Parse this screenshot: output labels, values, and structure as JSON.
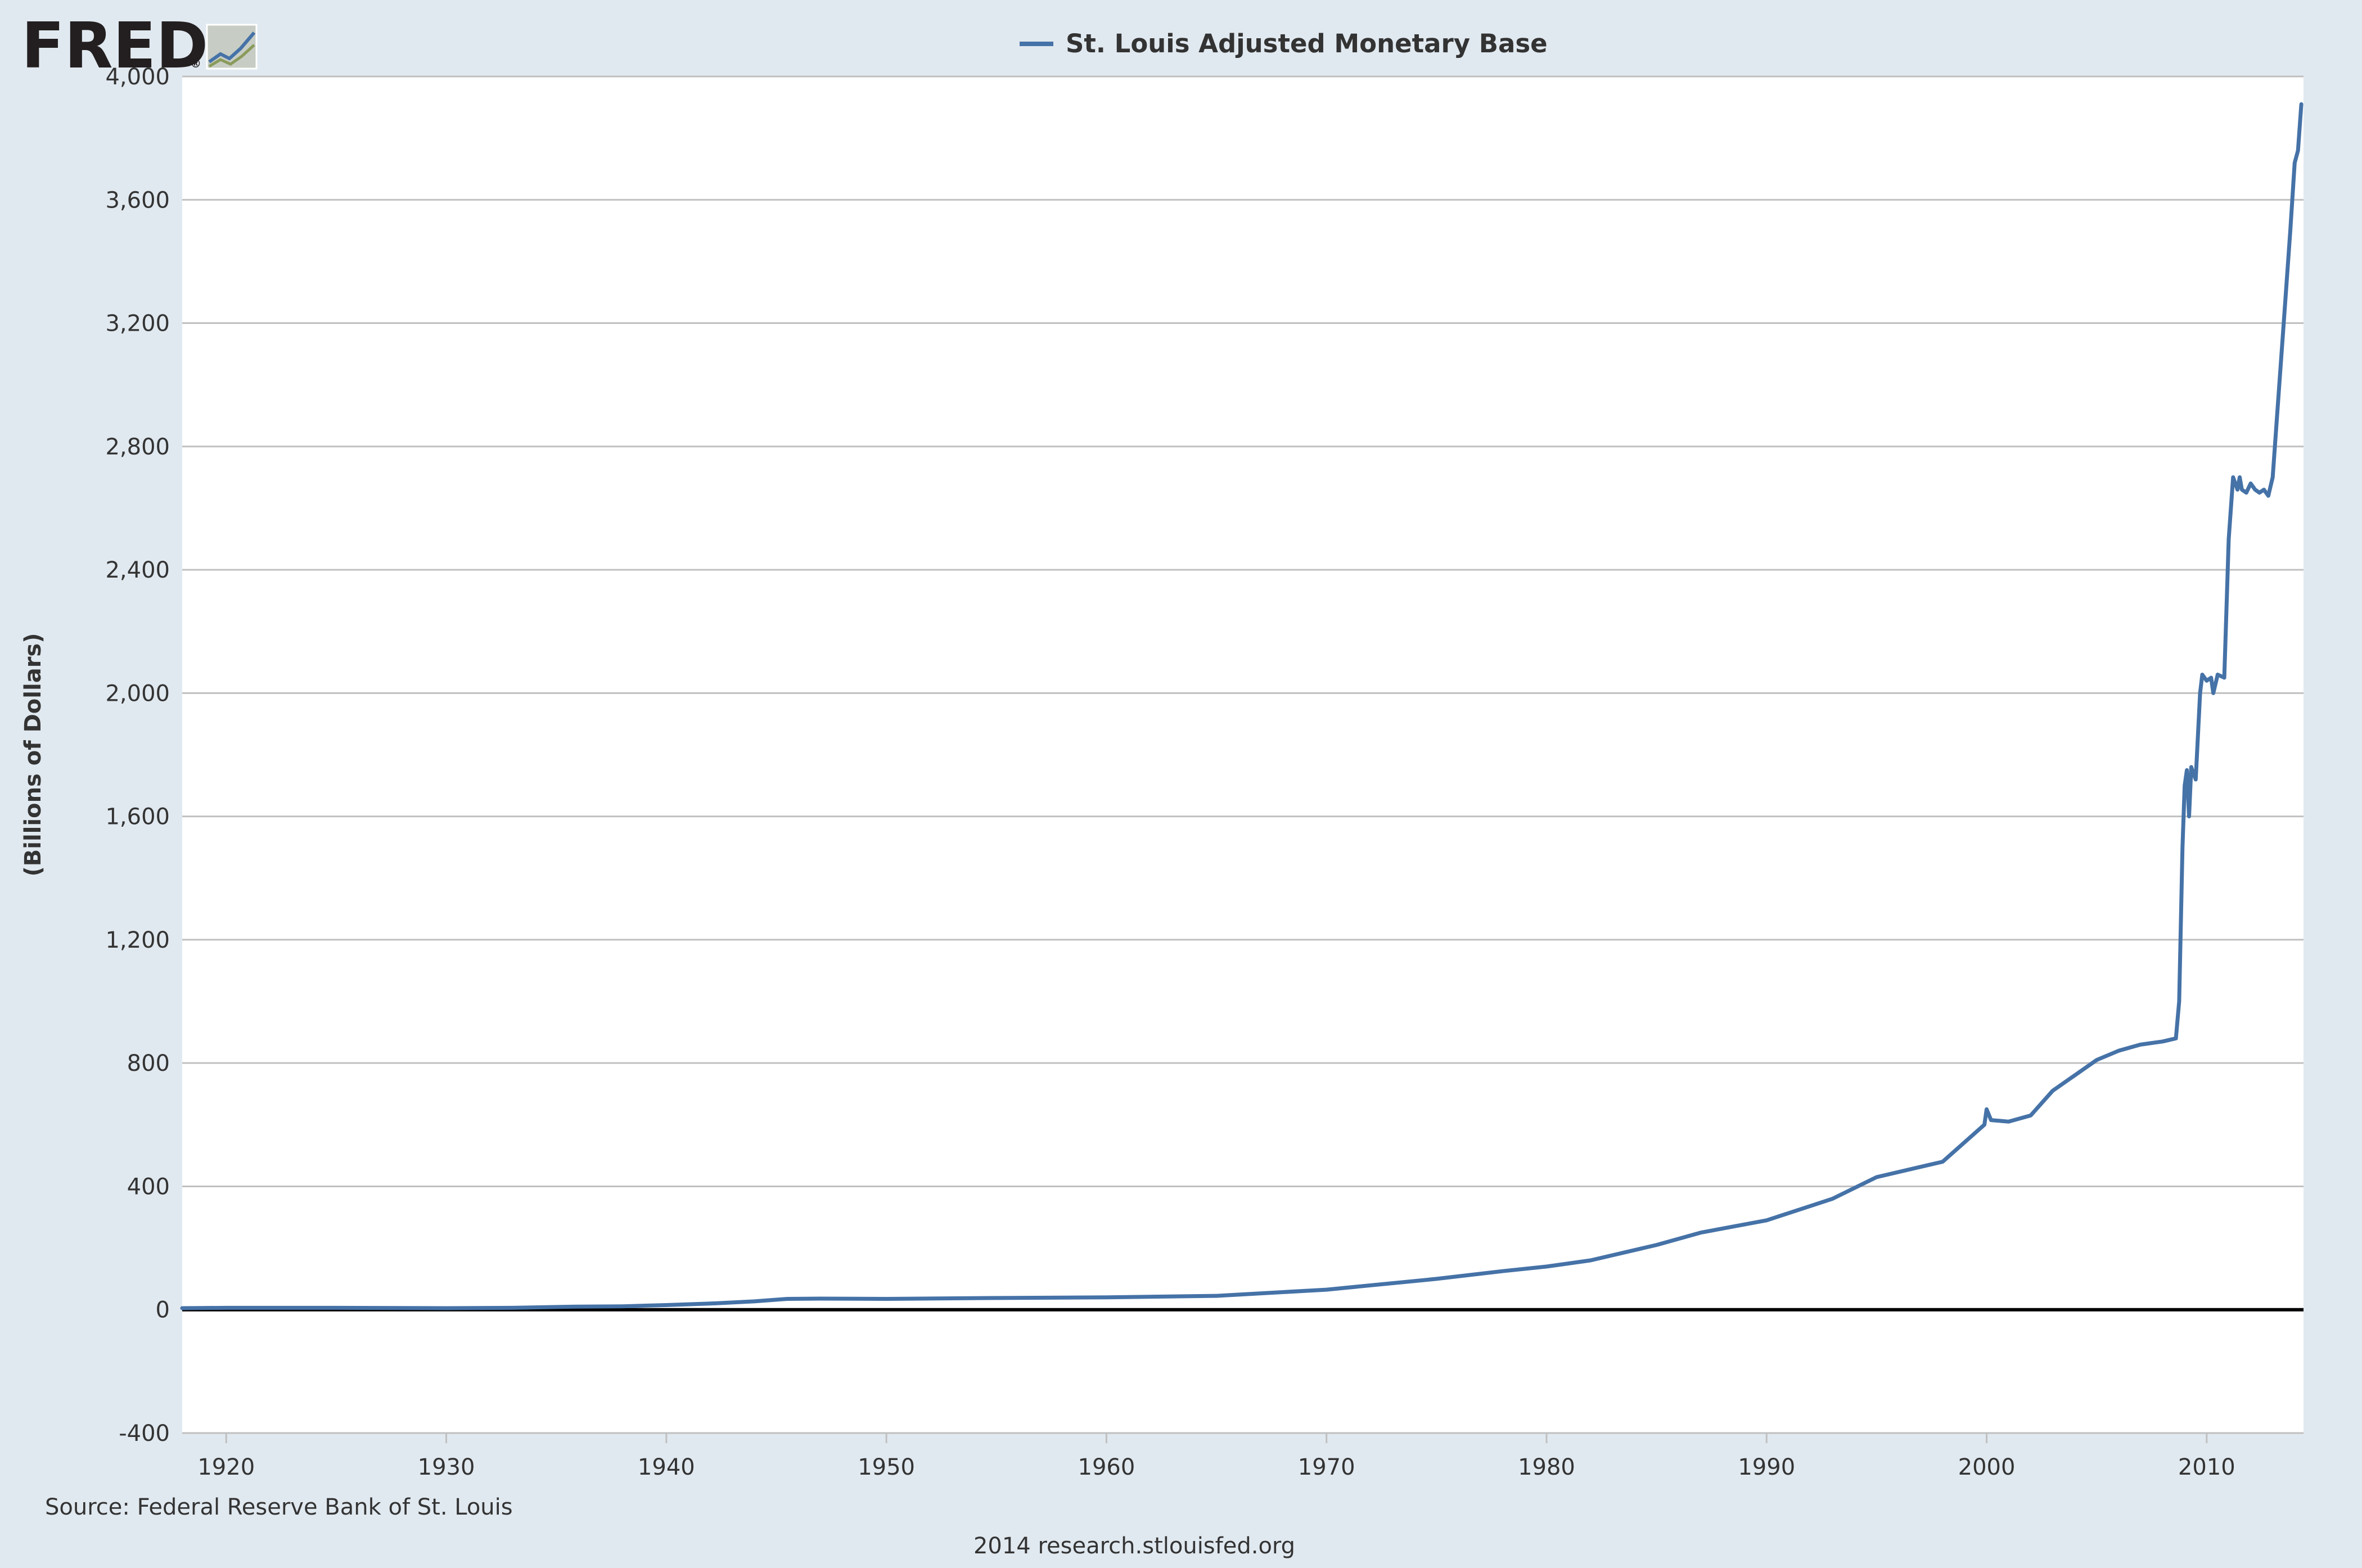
{
  "logo": {
    "text": "FRED",
    "registered": "®",
    "icon": "fred-chart-icon"
  },
  "source_text": "Source: Federal Reserve Bank of St. Louis",
  "footer_text": "2014 research.stlouisfed.org",
  "colors": {
    "series": "#4572a7",
    "zero_line": "#000000",
    "grid": "#c0c0c0",
    "plot_bg": "#ffffff",
    "page_bg": "#e1e9f0"
  },
  "chart_data": {
    "type": "line",
    "title": "",
    "xlabel": "",
    "ylabel": "(Billions of Dollars)",
    "legend": "top-center",
    "grid": true,
    "xlim": [
      1918.0,
      2014.4
    ],
    "ylim": [
      -400,
      4000
    ],
    "yticks": [
      -400,
      0,
      400,
      800,
      1200,
      1600,
      2000,
      2400,
      2800,
      3200,
      3600,
      4000
    ],
    "ytick_labels": [
      "-400",
      "0",
      "400",
      "800",
      "1,200",
      "1,600",
      "2,000",
      "2,400",
      "2,800",
      "3,200",
      "3,600",
      "4,000"
    ],
    "xticks": [
      1920,
      1930,
      1940,
      1950,
      1960,
      1970,
      1980,
      1990,
      2000,
      2010
    ],
    "xtick_labels": [
      "1920",
      "1930",
      "1940",
      "1950",
      "1960",
      "1970",
      "1980",
      "1990",
      "2000",
      "2010"
    ],
    "series": [
      {
        "name": "St. Louis Adjusted Monetary Base",
        "x": [
          1918.0,
          1920,
          1925,
          1930,
          1933,
          1936,
          1938,
          1940,
          1942,
          1944,
          1945.5,
          1947,
          1950,
          1955,
          1960,
          1965,
          1970,
          1975,
          1978,
          1980,
          1982,
          1985,
          1987,
          1990,
          1993,
          1995,
          1998,
          1999.9,
          2000.0,
          2000.2,
          2001,
          2002,
          2003,
          2004,
          2005,
          2006,
          2007,
          2008.0,
          2008.6,
          2008.75,
          2008.9,
          2009.0,
          2009.1,
          2009.2,
          2009.3,
          2009.5,
          2009.7,
          2009.8,
          2010.0,
          2010.2,
          2010.3,
          2010.5,
          2010.8,
          2011.0,
          2011.2,
          2011.4,
          2011.5,
          2011.6,
          2011.8,
          2012.0,
          2012.2,
          2012.4,
          2012.6,
          2012.8,
          2013.0,
          2013.2,
          2013.5,
          2013.8,
          2014.0,
          2014.15,
          2014.3
        ],
        "values": [
          5,
          6,
          6,
          5,
          6,
          10,
          11,
          15,
          20,
          27,
          35,
          36,
          35,
          38,
          40,
          45,
          65,
          100,
          125,
          140,
          160,
          210,
          250,
          290,
          360,
          430,
          480,
          600,
          650,
          615,
          610,
          630,
          710,
          760,
          810,
          840,
          860,
          870,
          880,
          1000,
          1500,
          1700,
          1750,
          1600,
          1760,
          1720,
          2000,
          2060,
          2040,
          2050,
          2000,
          2060,
          2050,
          2500,
          2700,
          2660,
          2700,
          2660,
          2650,
          2680,
          2660,
          2650,
          2660,
          2640,
          2700,
          2900,
          3200,
          3500,
          3720,
          3760,
          3910
        ]
      }
    ]
  }
}
